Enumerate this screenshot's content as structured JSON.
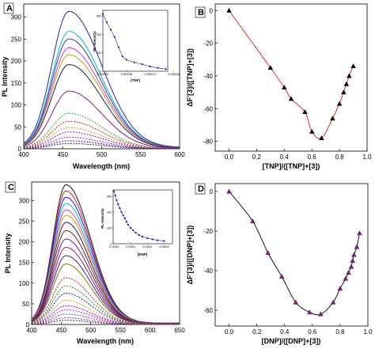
{
  "chart_data": [
    {
      "panel": "A",
      "type": "line",
      "xlabel": "Wavelength (nm)",
      "ylabel": "PL Intensity",
      "xlim": [
        400,
        600
      ],
      "ylim": [
        0,
        330
      ],
      "xticks": [
        "400",
        "450",
        "500",
        "550",
        "600"
      ],
      "yticks": [
        "0",
        "50",
        "100",
        "150",
        "200",
        "250",
        "300"
      ],
      "peak_x": 458,
      "series": [
        {
          "peak": 310,
          "color": "#1f2a9e",
          "dash": false
        },
        {
          "peak": 265,
          "color": "#00b8e6",
          "dash": false
        },
        {
          "peak": 248,
          "color": "#3a3a9a",
          "dash": false
        },
        {
          "peak": 228,
          "color": "#e033c8",
          "dash": false
        },
        {
          "peak": 212,
          "color": "#b0b000",
          "dash": false
        },
        {
          "peak": 190,
          "color": "#1a1a6e",
          "dash": false
        },
        {
          "peak": 130,
          "color": "#8a1a8a",
          "dash": false
        },
        {
          "peak": 80,
          "color": "#2aa52a",
          "dash": true
        },
        {
          "peak": 62,
          "color": "#e01a1a",
          "dash": true
        },
        {
          "peak": 48,
          "color": "#e09a1a",
          "dash": true
        },
        {
          "peak": 38,
          "color": "#7a1ab0",
          "dash": true
        },
        {
          "peak": 26,
          "color": "#d01ab0",
          "dash": true
        },
        {
          "peak": 18,
          "color": "#1a1ae0",
          "dash": true
        },
        {
          "peak": 12,
          "color": "#333333",
          "dash": true
        }
      ],
      "inset": {
        "xlabel": "[TNP]",
        "ylabel": "PL Intensity",
        "xlim": [
          0.0,
          0.000165
        ],
        "ylim": [
          0,
          330
        ],
        "xticks": [
          "0.00000",
          "0.00006",
          "0.00012",
          "0.00018"
        ],
        "yticks": [
          "0",
          "100",
          "200",
          "300"
        ],
        "x": [
          0.0,
          1e-05,
          2e-05,
          3e-05,
          4e-05,
          5e-05,
          6e-05,
          8e-05,
          0.0001,
          0.00012,
          0.00014,
          0.00016
        ],
        "y": [
          310,
          265,
          225,
          185,
          130,
          80,
          62,
          48,
          38,
          26,
          18,
          12
        ]
      }
    },
    {
      "panel": "B",
      "type": "line",
      "xlabel": "[TNP]/([TNP]+[3])",
      "ylabel": "ΔF'[3]/([TNP]+[3])",
      "xlim": [
        -0.1,
        1.0
      ],
      "ylim": [
        -86,
        4
      ],
      "xticks": [
        "0.0",
        "0.2",
        "0.4",
        "0.6",
        "0.8",
        "1.0"
      ],
      "yticks": [
        "0",
        "-20",
        "-40",
        "-60",
        "-80"
      ],
      "line_color": "#e01a1a",
      "marker": "triangle",
      "x": [
        0.0,
        0.3,
        0.4,
        0.45,
        0.55,
        0.6,
        0.67,
        0.75,
        0.8,
        0.83,
        0.85,
        0.87,
        0.9
      ],
      "y": [
        0,
        -35,
        -47,
        -54,
        -62,
        -74,
        -78,
        -66,
        -57,
        -50,
        -45,
        -40,
        -34
      ]
    },
    {
      "panel": "C",
      "type": "line",
      "xlabel": "Wavelength (nm)",
      "ylabel": "PL Intensity",
      "xlim": [
        400,
        650
      ],
      "ylim": [
        0,
        345
      ],
      "xticks": [
        "400",
        "450",
        "500",
        "550",
        "600",
        "650"
      ],
      "yticks": [
        "0",
        "50",
        "100",
        "150",
        "200",
        "250",
        "300"
      ],
      "peak_x": 458,
      "series": [
        {
          "peak": 335,
          "color": "#1a1a1a",
          "dash": false
        },
        {
          "peak": 320,
          "color": "#e01a1a",
          "dash": false
        },
        {
          "peak": 305,
          "color": "#1a1ae0",
          "dash": false
        },
        {
          "peak": 290,
          "color": "#00b8e6",
          "dash": false
        },
        {
          "peak": 275,
          "color": "#e033c8",
          "dash": false
        },
        {
          "peak": 262,
          "color": "#b0b000",
          "dash": false
        },
        {
          "peak": 245,
          "color": "#1a1a6e",
          "dash": false
        },
        {
          "peak": 225,
          "color": "#8a1a1a",
          "dash": false
        },
        {
          "peak": 205,
          "color": "#6a1a8a",
          "dash": false
        },
        {
          "peak": 185,
          "color": "#a01a5a",
          "dash": false
        },
        {
          "peak": 165,
          "color": "#2a2aa0",
          "dash": false
        },
        {
          "peak": 145,
          "color": "#808000",
          "dash": false
        },
        {
          "peak": 112,
          "color": "#c01a1a",
          "dash": true
        },
        {
          "peak": 92,
          "color": "#1a8a1a",
          "dash": true
        },
        {
          "peak": 75,
          "color": "#1a1aa0",
          "dash": true
        },
        {
          "peak": 58,
          "color": "#e09a1a",
          "dash": true
        },
        {
          "peak": 45,
          "color": "#7a1ab0",
          "dash": true
        },
        {
          "peak": 35,
          "color": "#d01ab0",
          "dash": true
        },
        {
          "peak": 25,
          "color": "#1a6ae0",
          "dash": true
        },
        {
          "peak": 16,
          "color": "#e01a6a",
          "dash": true
        },
        {
          "peak": 10,
          "color": "#333333",
          "dash": true
        }
      ],
      "inset": {
        "xlabel": "[DNP]",
        "ylabel": "PL Intensity",
        "xlim": [
          -5e-06,
          0.00035
        ],
        "ylim": [
          0,
          340
        ],
        "xticks": [
          "0.0000",
          "0.0001",
          "0.0002",
          "0.0003"
        ],
        "yticks": [
          "0",
          "100",
          "200",
          "300"
        ],
        "x": [
          0.0,
          8e-06,
          1.6e-05,
          2.5e-05,
          3.5e-05,
          4.5e-05,
          5.5e-05,
          6.5e-05,
          7.5e-05,
          8.5e-05,
          0.0001,
          0.000115,
          0.00013,
          0.00015,
          0.00017,
          0.0002,
          0.00023,
          0.00026,
          0.0003
        ],
        "y": [
          332,
          305,
          275,
          250,
          225,
          200,
          180,
          160,
          140,
          120,
          100,
          85,
          70,
          55,
          45,
          35,
          28,
          22,
          18
        ]
      }
    },
    {
      "panel": "D",
      "type": "line",
      "xlabel": "[DNP]/([DNP]+[3])",
      "ylabel": "ΔF'[3]/([DNP]+[3])",
      "xlim": [
        -0.1,
        1.0
      ],
      "ylim": [
        -68,
        4
      ],
      "xticks": [
        "0.0",
        "0.2",
        "0.4",
        "0.6",
        "0.8",
        "1.0"
      ],
      "yticks": [
        "0",
        "-20",
        "-40",
        "-60"
      ],
      "line_color": "#000000",
      "marker": "triangle",
      "marker_color": "#8a1a8a",
      "x": [
        0.0,
        0.17,
        0.28,
        0.38,
        0.48,
        0.58,
        0.66,
        0.75,
        0.8,
        0.84,
        0.86,
        0.88,
        0.89,
        0.9,
        0.92,
        0.94
      ],
      "y": [
        0,
        -15,
        -31,
        -43,
        -56,
        -61,
        -62,
        -56,
        -49,
        -44,
        -41,
        -38,
        -35,
        -32,
        -28,
        -21
      ]
    }
  ]
}
